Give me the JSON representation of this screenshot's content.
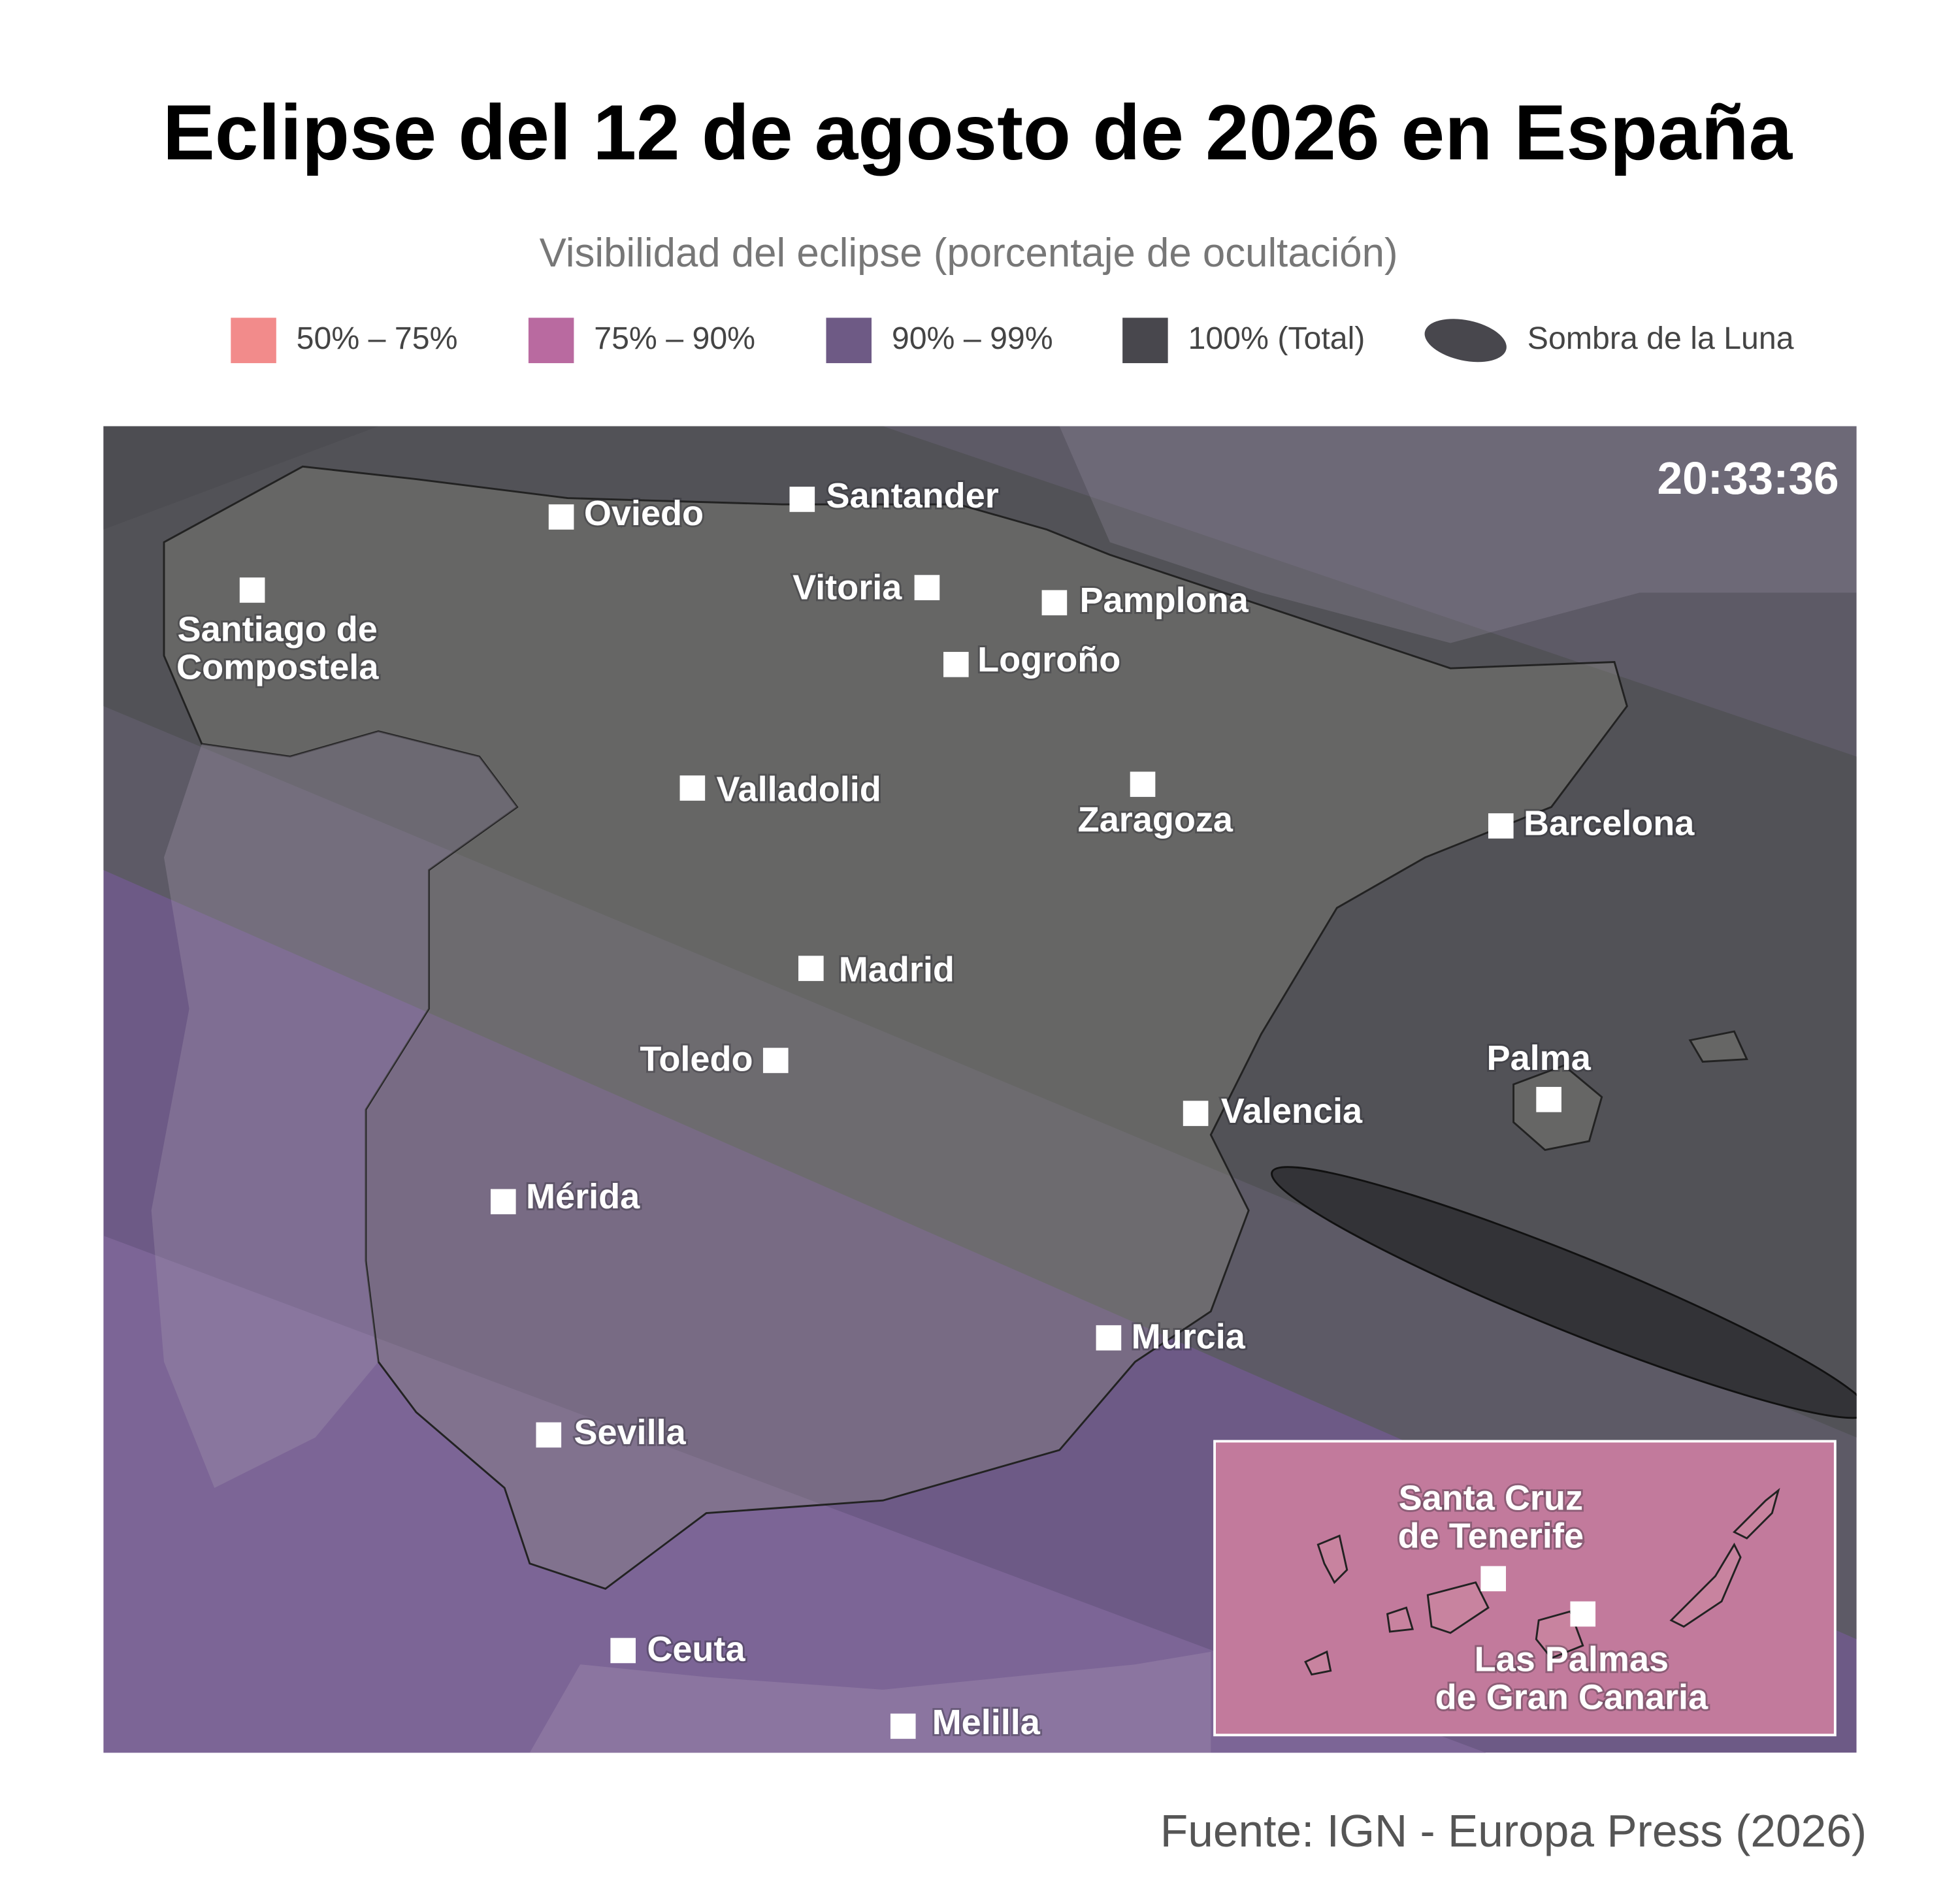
{
  "header": {
    "title": "Eclipse del 12 de agosto de 2026 en España",
    "subtitle": "Visibilidad del eclipse (porcentaje de ocultación)"
  },
  "legend": [
    {
      "label": "50% – 75%",
      "color": "#f28b8b"
    },
    {
      "label": "75% – 90%",
      "color": "#b96aa0"
    },
    {
      "label": "90% – 99%",
      "color": "#6e5a85"
    },
    {
      "label": "100% (Total)",
      "color": "#48474d"
    },
    {
      "label": "Sombra de la Luna",
      "color": "#48474d"
    }
  ],
  "map": {
    "time": "20:33:36",
    "cities": [
      {
        "label": [
          "Oviedo"
        ]
      },
      {
        "label": [
          "Santander"
        ]
      },
      {
        "label": [
          "Santiago de",
          "Compostela"
        ]
      },
      {
        "label": [
          "Vitoria"
        ]
      },
      {
        "label": [
          "Pamplona"
        ]
      },
      {
        "label": [
          "Logroño"
        ]
      },
      {
        "label": [
          "Valladolid"
        ]
      },
      {
        "label": [
          "Zaragoza"
        ]
      },
      {
        "label": [
          "Barcelona"
        ]
      },
      {
        "label": [
          "Madrid"
        ]
      },
      {
        "label": [
          "Toledo"
        ]
      },
      {
        "label": [
          "Palma"
        ]
      },
      {
        "label": [
          "Valencia"
        ]
      },
      {
        "label": [
          "Mérida"
        ]
      },
      {
        "label": [
          "Murcia"
        ]
      },
      {
        "label": [
          "Sevilla"
        ]
      },
      {
        "label": [
          "Ceuta"
        ]
      },
      {
        "label": [
          "Melilla"
        ]
      }
    ]
  },
  "inset": {
    "cities": [
      {
        "label": [
          "Santa Cruz",
          "de Tenerife"
        ]
      },
      {
        "label": [
          "Las Palmas",
          "de Gran Canaria"
        ]
      }
    ]
  },
  "source": "Fuente: IGN - Europa Press (2026)"
}
